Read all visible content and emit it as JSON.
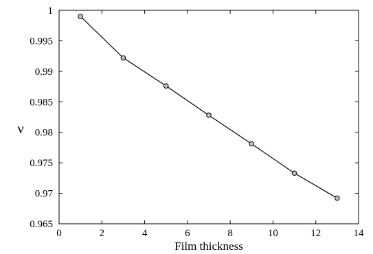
{
  "chart_data": {
    "type": "line",
    "title": "",
    "xlabel": "Film thickness",
    "ylabel": "ν",
    "xlim": [
      0,
      14
    ],
    "ylim": [
      0.965,
      1
    ],
    "x_ticks": [
      0,
      2,
      4,
      6,
      8,
      10,
      12,
      14
    ],
    "y_ticks": [
      0.965,
      0.97,
      0.975,
      0.98,
      0.985,
      0.99,
      0.995,
      1
    ],
    "x_tick_labels": [
      "0",
      "2",
      "4",
      "6",
      "8",
      "10",
      "12",
      "14"
    ],
    "y_tick_labels": [
      "0.965",
      "0.97",
      "0.975",
      "0.98",
      "0.985",
      "0.99",
      "0.995",
      "1"
    ],
    "grid": false,
    "legend": "none",
    "series": [
      {
        "x": [
          1,
          3,
          5,
          7,
          9,
          11,
          13
        ],
        "y": [
          0.999,
          0.9922,
          0.9876,
          0.9828,
          0.9781,
          0.9733,
          0.9692
        ],
        "line_color": "#000000",
        "marker_fill": "#bfbfbf",
        "marker_stroke": "#000000"
      }
    ]
  }
}
